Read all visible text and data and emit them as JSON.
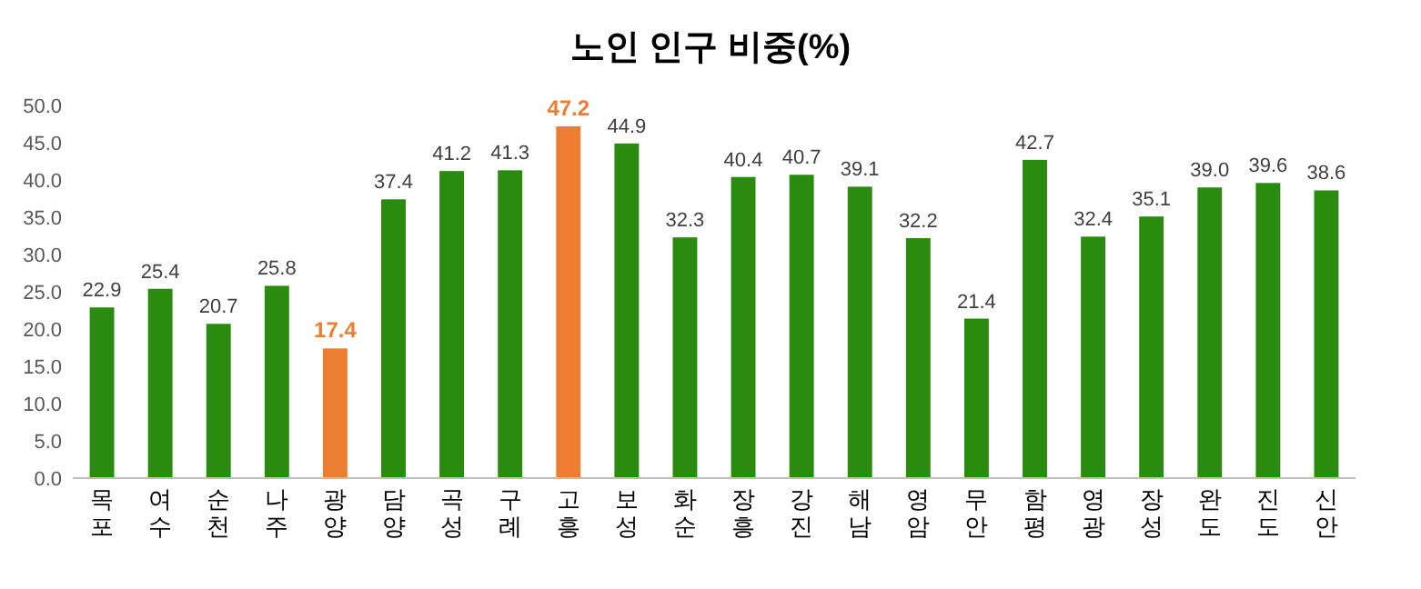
{
  "chart_data": {
    "type": "bar",
    "title": "노인 인구 비중(%)",
    "categories": [
      "목포",
      "여수",
      "순천",
      "나주",
      "광양",
      "담양",
      "곡성",
      "구례",
      "고흥",
      "보성",
      "화순",
      "장흥",
      "강진",
      "해남",
      "영암",
      "무안",
      "함평",
      "영광",
      "장성",
      "완도",
      "진도",
      "신안"
    ],
    "values": [
      22.9,
      25.4,
      20.7,
      25.8,
      17.4,
      37.4,
      41.2,
      41.3,
      47.2,
      44.9,
      32.3,
      40.4,
      40.7,
      39.1,
      32.2,
      21.4,
      42.7,
      32.4,
      35.1,
      39.0,
      39.6,
      38.6
    ],
    "colors": [
      "#2a8c0f",
      "#2a8c0f",
      "#2a8c0f",
      "#2a8c0f",
      "#ed7d31",
      "#2a8c0f",
      "#2a8c0f",
      "#2a8c0f",
      "#ed7d31",
      "#2a8c0f",
      "#2a8c0f",
      "#2a8c0f",
      "#2a8c0f",
      "#2a8c0f",
      "#2a8c0f",
      "#2a8c0f",
      "#2a8c0f",
      "#2a8c0f",
      "#2a8c0f",
      "#2a8c0f",
      "#2a8c0f",
      "#2a8c0f"
    ],
    "value_labels": [
      "22.9",
      "25.4",
      "20.7",
      "25.8",
      "17.4",
      "37.4",
      "41.2",
      "41.3",
      "47.2",
      "44.9",
      "32.3",
      "40.4",
      "40.7",
      "39.1",
      "32.2",
      "21.4",
      "42.7",
      "32.4",
      "35.1",
      "39.0",
      "39.6",
      "38.6"
    ],
    "ylim": [
      0,
      50
    ],
    "yticks": [
      {
        "value": 0,
        "label": "0.0"
      },
      {
        "value": 5,
        "label": "5.0"
      },
      {
        "value": 10,
        "label": "10.0"
      },
      {
        "value": 15,
        "label": "15.0"
      },
      {
        "value": 20,
        "label": "20.0"
      },
      {
        "value": 25,
        "label": "25.0"
      },
      {
        "value": 30,
        "label": "30.0"
      },
      {
        "value": 35,
        "label": "35.0"
      },
      {
        "value": 40,
        "label": "40.0"
      },
      {
        "value": 45,
        "label": "45.0"
      },
      {
        "value": 50,
        "label": "50.0"
      }
    ],
    "grid": false
  }
}
